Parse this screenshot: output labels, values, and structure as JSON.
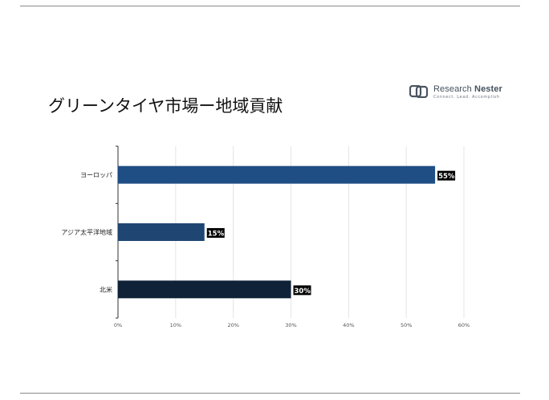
{
  "page": {
    "title": "グリーンタイヤ市場ー地域貢献"
  },
  "logo": {
    "name_part1": "Research ",
    "name_part2": "Nester",
    "tagline": "Connect. Lead. Accomplish"
  },
  "chart_data": {
    "type": "bar",
    "orientation": "horizontal",
    "categories": [
      "ヨーロッパ",
      "アジア太平洋地域",
      "北米"
    ],
    "values": [
      55,
      15,
      30
    ],
    "data_labels": [
      "55%",
      "15%",
      "30%"
    ],
    "bar_colors": [
      "#1f4e85",
      "#1f4672",
      "#0f2238"
    ],
    "xlim": [
      0,
      60
    ],
    "x_ticks": [
      0,
      10,
      20,
      30,
      40,
      50,
      60
    ],
    "x_tick_labels": [
      "0%",
      "10%",
      "20%",
      "30%",
      "40%",
      "50%",
      "60%"
    ],
    "grid": "vertical",
    "label_bg_color": "#000000"
  }
}
